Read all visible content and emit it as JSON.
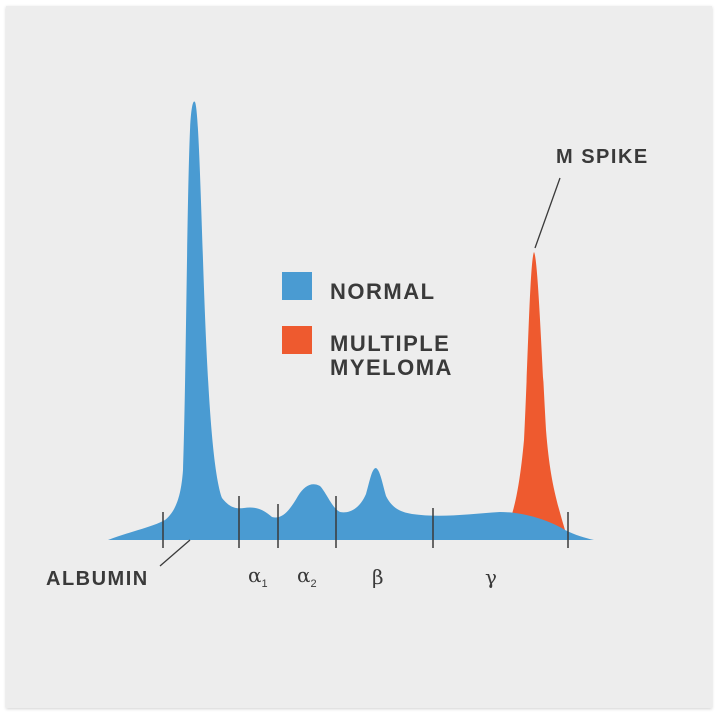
{
  "colors": {
    "normal": "#4a9bd2",
    "myeloma": "#ee5a2f",
    "ink": "#3a3a3a",
    "background": "#ededed"
  },
  "legend": {
    "normal_label": "NORMAL",
    "myeloma_label_line1": "MULTIPLE",
    "myeloma_label_line2": "MYELOMA"
  },
  "annotations": {
    "albumin": "ALBUMIN",
    "m_spike": "M SPIKE"
  },
  "fractions": [
    {
      "symbol": "α",
      "subscript": "1"
    },
    {
      "symbol": "α",
      "subscript": "2"
    },
    {
      "symbol": "β",
      "subscript": ""
    },
    {
      "symbol": "γ",
      "subscript": ""
    }
  ]
}
